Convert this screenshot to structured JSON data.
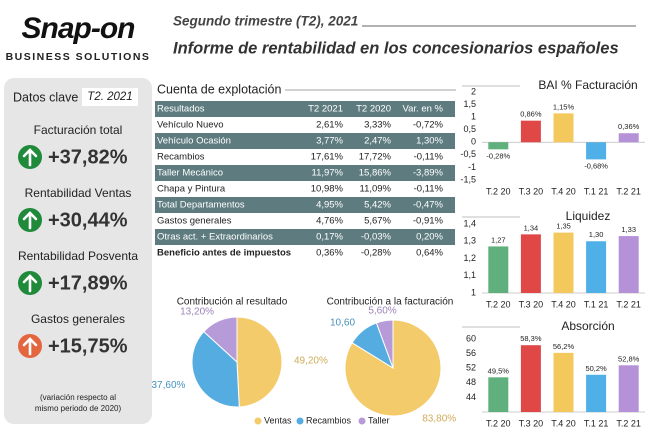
{
  "header": {
    "logo": "Snap-on",
    "brand_line": "BUSINESS SOLUTIONS",
    "subtitle": "Segundo trimestre (T2), 2021",
    "title": "Informe de rentabilidad en los concesionarios españoles"
  },
  "kpis": {
    "title": "Datos clave",
    "period": "T2. 2021",
    "items": [
      {
        "label": "Facturación total",
        "value": "+37,82%",
        "color": "#1e8a3a"
      },
      {
        "label": "Rentabilidad Ventas",
        "value": "+30,44%",
        "color": "#1e8a3a"
      },
      {
        "label": "Rentabilidad Posventa",
        "value": "+17,89%",
        "color": "#1e8a3a"
      },
      {
        "label": "Gastos generales",
        "value": "+15,75%",
        "color": "#e4663e"
      }
    ],
    "note": [
      "(variación respecto al",
      "mismo periodo de 2020)"
    ]
  },
  "table": {
    "title": "Cuenta de explotación",
    "columns": [
      "Resultados",
      "T2 2021",
      "T2 2020",
      "Var. en %"
    ],
    "rows": [
      [
        "Vehículo Nuevo",
        "2,61%",
        "3,33%",
        "-0,72%"
      ],
      [
        "Vehículo Ocasión",
        "3,77%",
        "2,47%",
        "1,30%"
      ],
      [
        "Recambios",
        "17,61%",
        "17,72%",
        "-0,11%"
      ],
      [
        "Taller Mecánico",
        "11,97%",
        "15,86%",
        "-3,89%"
      ],
      [
        "Chapa y Pintura",
        "10,98%",
        "11,09%",
        "-0,11%"
      ],
      [
        "Total Departamentos",
        "4,95%",
        "5,42%",
        "-0,47%"
      ],
      [
        "Gastos generales",
        "4,76%",
        "5,67%",
        "-0,91%"
      ],
      [
        "Otras act. + Extraordinarios",
        "0,17%",
        "-0,03%",
        "0,20%"
      ],
      [
        "Beneficio antes de impuestos",
        "0,36%",
        "-0,28%",
        "0,64%"
      ]
    ]
  },
  "chart_data": [
    {
      "type": "pie",
      "categories": [
        "Ventas",
        "Recambios",
        "Taller"
      ],
      "colors": [
        "#f3cb6a",
        "#55ace0",
        "#b79ad8"
      ],
      "series": [
        {
          "name": "Contribución al resultado",
          "values": [
            49.2,
            37.6,
            13.2
          ],
          "value_labels": [
            "49,20%",
            "37,60%",
            "13,20%"
          ]
        },
        {
          "name": "Contribución a la facturación",
          "values": [
            83.8,
            10.6,
            5.6
          ],
          "value_labels": [
            "83,80%",
            "10,60",
            "5,60%"
          ]
        }
      ]
    },
    {
      "type": "bar",
      "title": "BAI % Facturación",
      "categories": [
        "T.2 20",
        "T.3 20",
        "T.4 20",
        "T.1 21",
        "T.2 21"
      ],
      "values": [
        -0.28,
        0.86,
        1.15,
        -0.68,
        0.36
      ],
      "value_labels": [
        "-0,28%",
        "0,86%",
        "1,15%",
        "-0,68%",
        "0,36%"
      ],
      "colors": [
        "#5fb07c",
        "#e04848",
        "#f3c85c",
        "#4fb0e8",
        "#b592d8"
      ],
      "ylim": [
        -1.5,
        2
      ],
      "yticks": [
        {
          "value": -1.5,
          "label": "-1,5"
        },
        -1,
        {
          "value": -0.5,
          "label": "-0,5"
        },
        0,
        {
          "value": 0.5,
          "label": "0,5"
        },
        1,
        {
          "value": 1.5,
          "label": "1,5"
        },
        2
      ]
    },
    {
      "type": "bar",
      "title": "Liquidez",
      "categories": [
        "T.2 20",
        "T.3 20",
        "T.4 20",
        "T.1 21",
        "T.2 21"
      ],
      "values": [
        1.27,
        1.34,
        1.35,
        1.3,
        1.33
      ],
      "value_labels": [
        "1,27",
        "1,34",
        "1,35",
        "1,30",
        "1,33"
      ],
      "colors": [
        "#5fb07c",
        "#e04848",
        "#f3c85c",
        "#4fb0e8",
        "#b592d8"
      ],
      "ylim": [
        1,
        1.4
      ],
      "yticks": [
        1,
        {
          "value": 1.1,
          "label": "1,1"
        },
        {
          "value": 1.2,
          "label": "1,2"
        },
        {
          "value": 1.3,
          "label": "1,3"
        },
        {
          "value": 1.4,
          "label": "1,4"
        }
      ]
    },
    {
      "type": "bar",
      "title": "Absorción",
      "categories": [
        "T.2 20",
        "T.3 20",
        "T.4 20",
        "T.1 21",
        "T.2 21"
      ],
      "values": [
        49.5,
        58.3,
        56.2,
        50.2,
        52.8
      ],
      "value_labels": [
        "49,5%",
        "58,3%",
        "56,2%",
        "50,2%",
        "52,8%"
      ],
      "colors": [
        "#5fb07c",
        "#e04848",
        "#f3c85c",
        "#4fb0e8",
        "#b592d8"
      ],
      "ylim": [
        40,
        60
      ],
      "yticks": [
        44,
        48,
        52,
        56,
        60
      ]
    }
  ]
}
